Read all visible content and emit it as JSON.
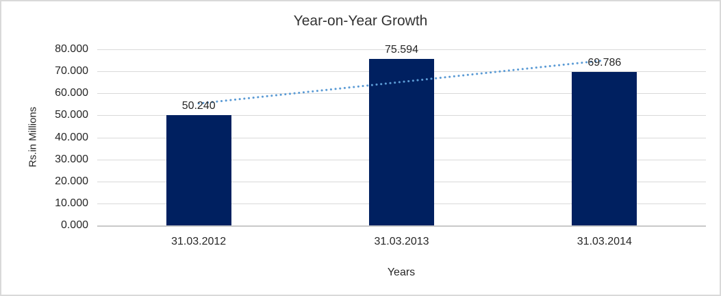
{
  "chart_data": {
    "type": "bar",
    "title": "Year-on-Year Growth",
    "categories": [
      "31.03.2012",
      "31.03.2013",
      "31.03.2014"
    ],
    "values": [
      50.24,
      75.594,
      69.786
    ],
    "value_labels": [
      "50.240",
      "75.594",
      "69.786"
    ],
    "xlabel": "Years",
    "ylabel": "Rs.in Millions",
    "ylim": [
      0,
      80
    ],
    "ytick_step": 10,
    "ytick_labels": [
      "0.000",
      "10.000",
      "20.000",
      "30.000",
      "40.000",
      "50.000",
      "60.000",
      "70.000",
      "80.000"
    ],
    "grid": true,
    "legend_position": "none",
    "bar_color": "#002060",
    "trendline": {
      "style": "dotted",
      "color": "#5B9BD5",
      "start_value": 55.4,
      "end_value": 75.0
    }
  },
  "colors": {
    "gridline": "#D9D9D9",
    "axis_line": "#C9C9C9",
    "frame_border": "#D9D9D9",
    "background": "#FFFFFF",
    "text": "#262626"
  }
}
